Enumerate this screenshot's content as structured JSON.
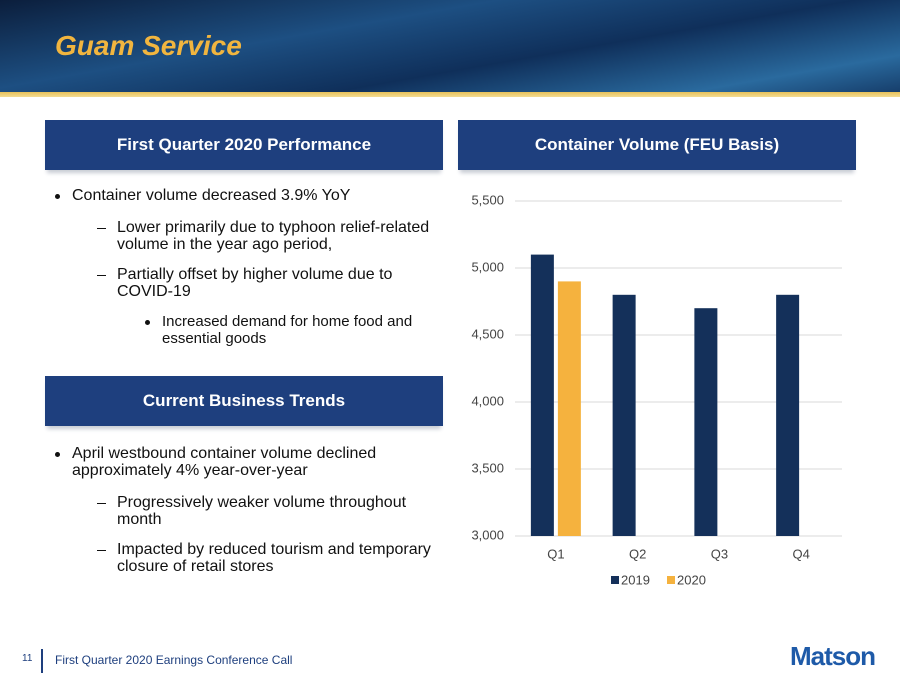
{
  "header": {
    "title": "Guam Service"
  },
  "panels": [
    {
      "title": "First Quarter 2020 Performance",
      "bullets": [
        {
          "text": "Container volume decreased 3.9% YoY",
          "subs": [
            {
              "text": "Lower primarily due to typhoon relief-related volume in the year ago period,"
            },
            {
              "text": "Partially offset by higher volume due to COVID-19",
              "subs": [
                {
                  "text": "Increased demand for home food and essential goods"
                }
              ]
            }
          ]
        }
      ]
    },
    {
      "title": "Current Business Trends",
      "bullets": [
        {
          "text": "April westbound container volume declined approximately 4% year-over-year",
          "subs": [
            {
              "text": "Progressively weaker volume throughout month"
            },
            {
              "text": "Impacted by reduced tourism and temporary closure of retail stores"
            }
          ]
        }
      ]
    }
  ],
  "chart_data": {
    "type": "bar",
    "title": "Container Volume (FEU Basis)",
    "categories": [
      "Q1",
      "Q2",
      "Q3",
      "Q4"
    ],
    "series": [
      {
        "name": "2019",
        "color": "#14305a",
        "values": [
          5100,
          4800,
          4700,
          4800
        ]
      },
      {
        "name": "2020",
        "color": "#f5b23e",
        "values": [
          4900,
          null,
          null,
          null
        ]
      }
    ],
    "ylim": [
      3000,
      5500
    ],
    "yticks": [
      {
        "value": 3000,
        "label": "3,000"
      },
      {
        "value": 3500,
        "label": "3,500"
      },
      {
        "value": 4000,
        "label": "4,000"
      },
      {
        "value": 4500,
        "label": "4,500"
      },
      {
        "value": 5000,
        "label": "5,000"
      },
      {
        "value": 5500,
        "label": "5,500"
      }
    ],
    "grid": true,
    "legend": "bottom"
  },
  "footer": {
    "page": "11",
    "text": "First Quarter 2020 Earnings Conference Call",
    "logo": "Matson"
  }
}
